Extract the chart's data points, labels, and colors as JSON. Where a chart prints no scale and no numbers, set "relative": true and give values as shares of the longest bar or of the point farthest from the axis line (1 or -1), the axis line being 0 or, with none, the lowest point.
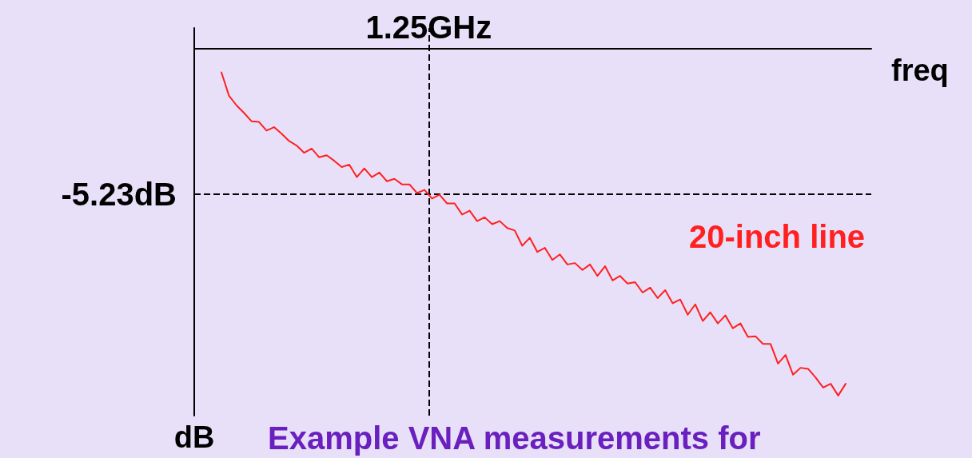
{
  "chart_data": {
    "type": "line",
    "xlabel": "freq",
    "ylabel": "dB",
    "relative": true,
    "annotations": [
      "Example VNA measurements for",
      "1.25GHz"
    ],
    "ref_lines": [
      {
        "axis": "y",
        "value": -0.421,
        "label": "-5.23dB",
        "color": "#000000",
        "line_style": "dashed"
      }
    ],
    "grid": false,
    "legend": false,
    "marker": "none",
    "line_style": "solid",
    "categories": [
      null,
      null,
      null,
      null,
      null,
      null,
      null,
      null,
      null,
      null,
      null,
      null,
      null,
      null,
      null,
      null,
      null,
      null,
      null,
      null,
      null,
      null,
      null,
      null,
      null,
      null,
      null,
      null,
      null,
      null,
      null,
      null,
      null,
      null,
      null,
      null,
      null,
      null,
      null,
      null,
      null,
      null,
      null,
      null,
      null,
      null,
      null,
      null,
      null,
      null,
      null,
      null,
      null,
      null,
      null,
      null,
      null,
      null,
      null,
      null,
      null,
      null,
      null,
      null,
      null,
      null,
      null,
      null,
      null,
      null,
      null,
      null,
      null,
      null,
      null,
      null,
      null,
      null,
      null,
      null,
      null,
      null,
      null,
      null
    ],
    "series": [
      {
        "name": "20-inch line",
        "color": "#ff2020",
        "values": [
          -0.068,
          -0.135,
          -0.163,
          -0.185,
          -0.209,
          -0.211,
          -0.236,
          -0.226,
          -0.245,
          -0.266,
          -0.279,
          -0.3,
          -0.288,
          -0.313,
          -0.307,
          -0.323,
          -0.341,
          -0.334,
          -0.37,
          -0.345,
          -0.37,
          -0.357,
          -0.382,
          -0.375,
          -0.391,
          -0.391,
          -0.416,
          -0.407,
          -0.432,
          -0.421,
          -0.446,
          -0.446,
          -0.478,
          -0.467,
          -0.497,
          -0.486,
          -0.506,
          -0.497,
          -0.517,
          -0.524,
          -0.568,
          -0.545,
          -0.586,
          -0.574,
          -0.609,
          -0.593,
          -0.622,
          -0.618,
          -0.638,
          -0.622,
          -0.655,
          -0.627,
          -0.668,
          -0.655,
          -0.677,
          -0.673,
          -0.703,
          -0.689,
          -0.719,
          -0.696,
          -0.734,
          -0.723,
          -0.767,
          -0.737,
          -0.785,
          -0.76,
          -0.792,
          -0.769,
          -0.806,
          -0.792,
          -0.831,
          -0.829,
          -0.851,
          -0.851,
          -0.908,
          -0.883,
          -0.94,
          -0.92,
          -0.923,
          -0.948,
          -0.977,
          -0.966,
          -1,
          -0.966
        ]
      }
    ]
  }
}
